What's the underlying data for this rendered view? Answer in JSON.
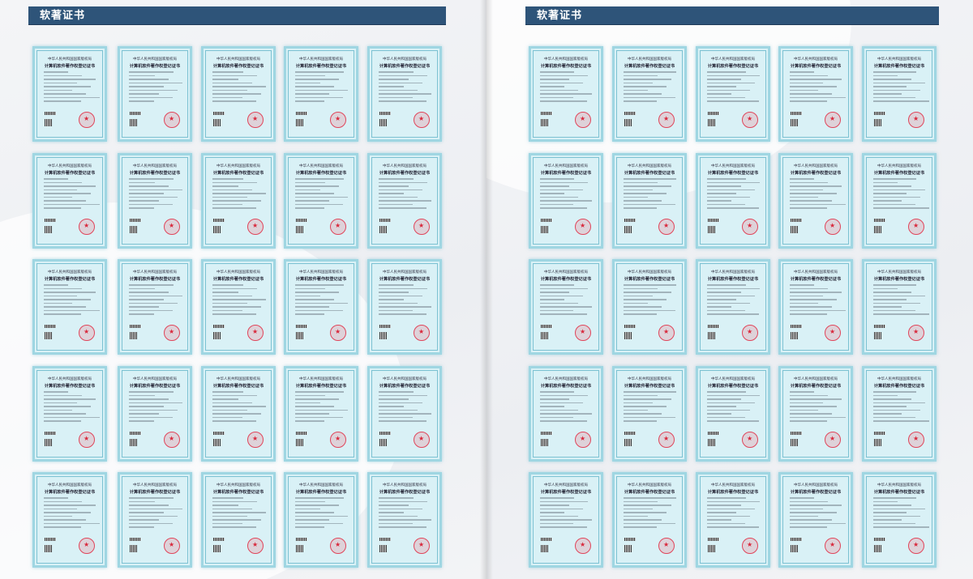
{
  "pages": [
    {
      "header": "软著证书"
    },
    {
      "header": "软著证书"
    }
  ],
  "certificate": {
    "issuer": "中华人民共和国国家版权局",
    "title": "计算机软件著作权登记证书",
    "count_per_page": 25
  },
  "colors": {
    "header_bg": "#2e5479",
    "certificate_bg": "#d9f1f6",
    "seal": "#e0455a"
  },
  "icons": [
    "seal-icon",
    "qr-code-icon",
    "barcode-icon"
  ]
}
